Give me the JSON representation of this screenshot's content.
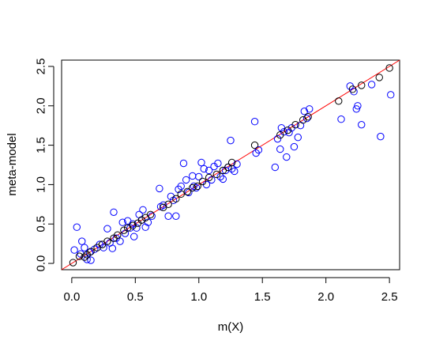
{
  "chart_data": {
    "type": "scatter",
    "title": "",
    "xlabel": "m(X)",
    "ylabel": "meta-model",
    "xlim": [
      -0.08,
      2.58
    ],
    "ylim": [
      -0.08,
      2.58
    ],
    "x_ticks": [
      0.0,
      0.5,
      1.0,
      1.5,
      2.0,
      2.5
    ],
    "y_ticks": [
      0.0,
      0.5,
      1.0,
      1.5,
      2.0,
      2.5
    ],
    "x_tick_labels": [
      "0.0",
      "0.5",
      "1.0",
      "1.5",
      "2.0",
      "2.5"
    ],
    "y_tick_labels": [
      "0.0",
      "0.5",
      "1.0",
      "1.5",
      "2.0",
      "2.5"
    ],
    "grid": false,
    "reference_line": {
      "slope": 1,
      "intercept": 0,
      "color": "#ff0000"
    },
    "series": [
      {
        "color": "#0000ff",
        "marker": "open-circle",
        "points": [
          [
            0.02,
            0.17
          ],
          [
            0.04,
            0.46
          ],
          [
            0.07,
            0.12
          ],
          [
            0.08,
            0.28
          ],
          [
            0.1,
            0.2
          ],
          [
            0.12,
            0.05
          ],
          [
            0.14,
            0.14
          ],
          [
            0.15,
            0.04
          ],
          [
            0.18,
            0.18
          ],
          [
            0.22,
            0.24
          ],
          [
            0.25,
            0.2
          ],
          [
            0.28,
            0.44
          ],
          [
            0.3,
            0.26
          ],
          [
            0.32,
            0.19
          ],
          [
            0.33,
            0.65
          ],
          [
            0.35,
            0.32
          ],
          [
            0.38,
            0.28
          ],
          [
            0.4,
            0.52
          ],
          [
            0.42,
            0.38
          ],
          [
            0.44,
            0.54
          ],
          [
            0.46,
            0.45
          ],
          [
            0.48,
            0.5
          ],
          [
            0.49,
            0.34
          ],
          [
            0.51,
            0.45
          ],
          [
            0.53,
            0.62
          ],
          [
            0.55,
            0.55
          ],
          [
            0.56,
            0.68
          ],
          [
            0.58,
            0.46
          ],
          [
            0.6,
            0.52
          ],
          [
            0.63,
            0.6
          ],
          [
            0.69,
            0.95
          ],
          [
            0.7,
            0.72
          ],
          [
            0.72,
            0.74
          ],
          [
            0.76,
            0.6
          ],
          [
            0.78,
            0.85
          ],
          [
            0.8,
            0.8
          ],
          [
            0.82,
            0.6
          ],
          [
            0.84,
            0.94
          ],
          [
            0.86,
            0.98
          ],
          [
            0.88,
            1.27
          ],
          [
            0.9,
            1.06
          ],
          [
            0.92,
            0.9
          ],
          [
            0.95,
            1.11
          ],
          [
            0.96,
            0.98
          ],
          [
            0.98,
            0.96
          ],
          [
            1.0,
            1.1
          ],
          [
            1.02,
            1.28
          ],
          [
            1.04,
            1.2
          ],
          [
            1.06,
            1.0
          ],
          [
            1.08,
            1.18
          ],
          [
            1.1,
            1.06
          ],
          [
            1.12,
            1.23
          ],
          [
            1.15,
            1.27
          ],
          [
            1.17,
            1.1
          ],
          [
            1.19,
            1.07
          ],
          [
            1.21,
            1.18
          ],
          [
            1.23,
            1.22
          ],
          [
            1.25,
            1.56
          ],
          [
            1.26,
            1.2
          ],
          [
            1.28,
            1.17
          ],
          [
            1.3,
            1.26
          ],
          [
            1.44,
            1.8
          ],
          [
            1.45,
            1.4
          ],
          [
            1.47,
            1.44
          ],
          [
            1.6,
            1.22
          ],
          [
            1.62,
            1.58
          ],
          [
            1.64,
            1.45
          ],
          [
            1.65,
            1.72
          ],
          [
            1.67,
            1.67
          ],
          [
            1.69,
            1.35
          ],
          [
            1.71,
            1.66
          ],
          [
            1.73,
            1.72
          ],
          [
            1.75,
            1.48
          ],
          [
            1.78,
            1.6
          ],
          [
            1.8,
            1.75
          ],
          [
            1.83,
            1.93
          ],
          [
            1.85,
            1.84
          ],
          [
            1.87,
            1.96
          ],
          [
            2.12,
            1.83
          ],
          [
            2.19,
            2.25
          ],
          [
            2.22,
            2.18
          ],
          [
            2.24,
            1.96
          ],
          [
            2.25,
            2.0
          ],
          [
            2.28,
            1.76
          ],
          [
            2.36,
            2.27
          ],
          [
            2.43,
            1.61
          ],
          [
            2.51,
            2.14
          ]
        ]
      },
      {
        "color": "#000000",
        "marker": "open-circle",
        "points": [
          [
            0.01,
            0.01
          ],
          [
            0.06,
            0.09
          ],
          [
            0.1,
            0.08
          ],
          [
            0.12,
            0.11
          ],
          [
            0.15,
            0.15
          ],
          [
            0.2,
            0.2
          ],
          [
            0.24,
            0.24
          ],
          [
            0.28,
            0.28
          ],
          [
            0.33,
            0.32
          ],
          [
            0.36,
            0.36
          ],
          [
            0.41,
            0.42
          ],
          [
            0.44,
            0.45
          ],
          [
            0.48,
            0.48
          ],
          [
            0.52,
            0.51
          ],
          [
            0.55,
            0.55
          ],
          [
            0.58,
            0.58
          ],
          [
            0.62,
            0.62
          ],
          [
            0.72,
            0.71
          ],
          [
            0.76,
            0.75
          ],
          [
            0.82,
            0.82
          ],
          [
            0.86,
            0.88
          ],
          [
            0.91,
            0.91
          ],
          [
            0.95,
            0.96
          ],
          [
            0.99,
            0.98
          ],
          [
            1.03,
            1.04
          ],
          [
            1.08,
            1.09
          ],
          [
            1.14,
            1.13
          ],
          [
            1.19,
            1.18
          ],
          [
            1.23,
            1.22
          ],
          [
            1.26,
            1.28
          ],
          [
            1.44,
            1.5
          ],
          [
            1.64,
            1.63
          ],
          [
            1.7,
            1.69
          ],
          [
            1.76,
            1.76
          ],
          [
            1.82,
            1.82
          ],
          [
            1.86,
            1.86
          ],
          [
            2.1,
            2.06
          ],
          [
            2.21,
            2.21
          ],
          [
            2.28,
            2.26
          ],
          [
            2.42,
            2.36
          ],
          [
            2.5,
            2.48
          ]
        ]
      }
    ]
  }
}
